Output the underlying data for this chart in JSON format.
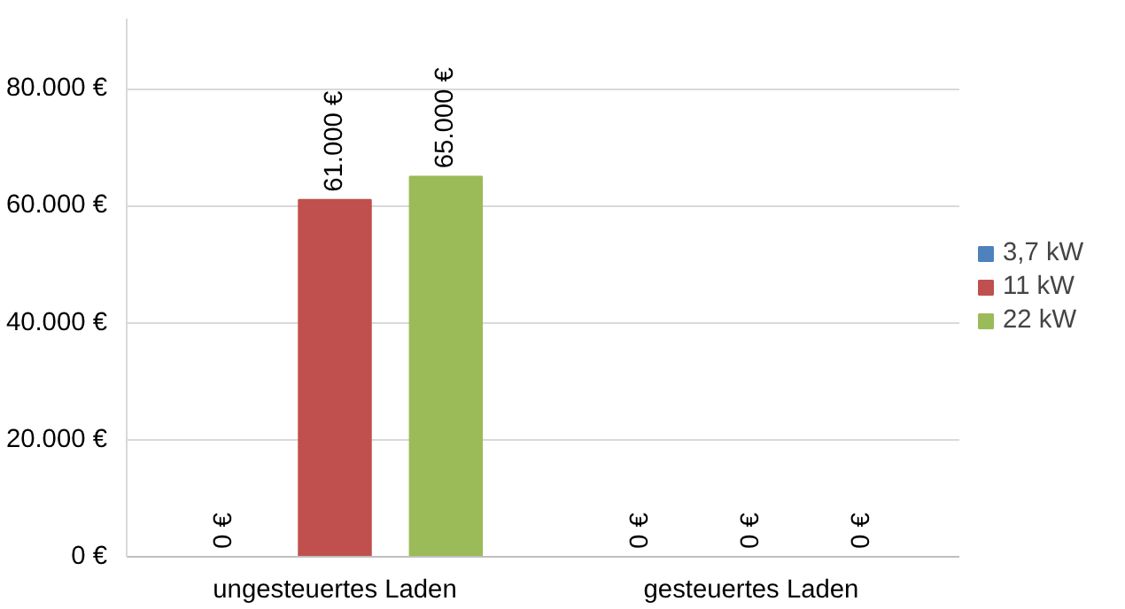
{
  "chart_data": {
    "type": "bar",
    "categories": [
      "ungesteuertes Laden",
      "gesteuertes Laden"
    ],
    "series": [
      {
        "name": "3,7 kW",
        "color": "#4f81bd",
        "values": [
          0,
          0
        ],
        "value_labels": [
          "0 €",
          "0 €"
        ]
      },
      {
        "name": "11 kW",
        "color": "#c0504d",
        "values": [
          61000,
          0
        ],
        "value_labels": [
          "61.000 €",
          "0 €"
        ]
      },
      {
        "name": "22 kW",
        "color": "#9bbb59",
        "values": [
          65000,
          0
        ],
        "value_labels": [
          "65.000 €",
          "0 €"
        ]
      }
    ],
    "ylim": [
      0,
      92000
    ],
    "yticks": [
      {
        "value": 0,
        "label": "0 €"
      },
      {
        "value": 20000,
        "label": "20.000 €"
      },
      {
        "value": 40000,
        "label": "40.000 €"
      },
      {
        "value": 60000,
        "label": "60.000 €"
      },
      {
        "value": 80000,
        "label": "80.000 €"
      }
    ],
    "grid": "y",
    "legend": "right"
  }
}
